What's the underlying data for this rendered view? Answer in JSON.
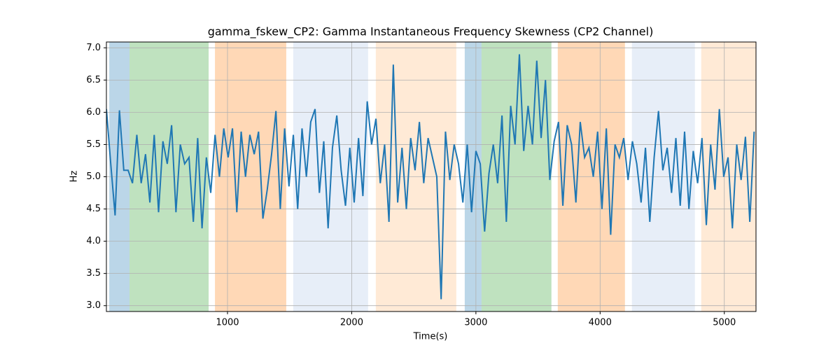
{
  "chart_data": {
    "type": "line",
    "title": "gamma_fskew_CP2: Gamma Instantaneous Frequency Skewness (CP2 Channel)",
    "x_label": "Time(s)",
    "y_label": "Hz",
    "x": [
      25,
      60,
      95,
      130,
      165,
      200,
      235,
      270,
      305,
      340,
      375,
      410,
      445,
      480,
      515,
      550,
      585,
      620,
      655,
      690,
      725,
      760,
      795,
      830,
      865,
      900,
      935,
      970,
      1005,
      1040,
      1075,
      1110,
      1145,
      1180,
      1215,
      1250,
      1285,
      1320,
      1355,
      1390,
      1425,
      1460,
      1495,
      1530,
      1565,
      1600,
      1635,
      1670,
      1705,
      1740,
      1775,
      1810,
      1845,
      1880,
      1915,
      1950,
      1985,
      2020,
      2055,
      2090,
      2125,
      2160,
      2195,
      2230,
      2265,
      2300,
      2335,
      2370,
      2405,
      2440,
      2475,
      2510,
      2545,
      2580,
      2615,
      2650,
      2685,
      2720,
      2755,
      2790,
      2825,
      2860,
      2895,
      2930,
      2965,
      3000,
      3035,
      3070,
      3105,
      3140,
      3175,
      3210,
      3245,
      3280,
      3315,
      3350,
      3385,
      3420,
      3455,
      3490,
      3525,
      3560,
      3595,
      3630,
      3665,
      3700,
      3735,
      3770,
      3805,
      3840,
      3875,
      3910,
      3945,
      3980,
      4015,
      4050,
      4085,
      4120,
      4155,
      4190,
      4225,
      4260,
      4295,
      4330,
      4365,
      4400,
      4435,
      4470,
      4505,
      4540,
      4575,
      4610,
      4645,
      4680,
      4715,
      4750,
      4785,
      4820,
      4855,
      4890,
      4925,
      4960,
      4995,
      5030,
      5065,
      5100,
      5135,
      5170,
      5205,
      5240
    ],
    "series": [
      {
        "name": "gamma_fskew_CP2",
        "color": "#1f77b4",
        "values": [
          6.05,
          5.2,
          4.4,
          6.03,
          5.1,
          5.1,
          4.9,
          5.65,
          4.9,
          5.35,
          4.6,
          5.65,
          4.45,
          5.55,
          5.2,
          5.8,
          4.45,
          5.5,
          5.2,
          5.3,
          4.3,
          5.6,
          4.2,
          5.3,
          4.75,
          5.65,
          5.0,
          5.75,
          5.3,
          5.75,
          4.45,
          5.7,
          5.0,
          5.65,
          5.35,
          5.7,
          4.35,
          4.8,
          5.35,
          6.02,
          4.5,
          5.75,
          4.85,
          5.65,
          4.5,
          5.75,
          5.0,
          5.85,
          6.05,
          4.75,
          5.55,
          4.2,
          5.45,
          5.95,
          5.1,
          4.55,
          5.45,
          4.6,
          5.6,
          4.7,
          6.17,
          5.5,
          5.9,
          4.9,
          5.5,
          4.3,
          6.74,
          4.6,
          5.45,
          4.5,
          5.6,
          5.1,
          5.85,
          4.9,
          5.6,
          5.3,
          5.0,
          3.1,
          5.7,
          4.95,
          5.5,
          5.2,
          4.6,
          5.5,
          4.45,
          5.4,
          5.2,
          4.15,
          5.05,
          5.5,
          4.9,
          5.95,
          4.3,
          6.1,
          5.5,
          6.9,
          5.4,
          6.1,
          5.5,
          6.8,
          5.6,
          6.5,
          4.95,
          5.55,
          5.85,
          4.55,
          5.8,
          5.5,
          4.6,
          5.85,
          5.3,
          5.45,
          5.0,
          5.7,
          4.5,
          5.75,
          4.1,
          5.5,
          5.3,
          5.6,
          4.95,
          5.55,
          5.2,
          4.6,
          5.45,
          4.3,
          5.3,
          6.02,
          5.1,
          5.45,
          4.75,
          5.6,
          4.55,
          5.7,
          4.5,
          5.4,
          4.9,
          5.6,
          4.25,
          5.5,
          4.8,
          6.05,
          5.0,
          5.3,
          4.2,
          5.5,
          4.95,
          5.62,
          4.3,
          5.7
        ]
      }
    ],
    "spans": [
      {
        "start": 48,
        "end": 211,
        "color": "#1f77b4",
        "opacity": 0.3
      },
      {
        "start": 211,
        "end": 848,
        "color": "#2ca02c",
        "opacity": 0.3
      },
      {
        "start": 899,
        "end": 1473,
        "color": "#ff7f0e",
        "opacity": 0.3
      },
      {
        "start": 1529,
        "end": 2132,
        "color": "#aec7e8",
        "opacity": 0.3
      },
      {
        "start": 2194,
        "end": 2842,
        "color": "#ffbb78",
        "opacity": 0.3
      },
      {
        "start": 2910,
        "end": 3045,
        "color": "#1f77b4",
        "opacity": 0.3
      },
      {
        "start": 3045,
        "end": 3608,
        "color": "#2ca02c",
        "opacity": 0.3
      },
      {
        "start": 3659,
        "end": 4200,
        "color": "#ff7f0e",
        "opacity": 0.3
      },
      {
        "start": 4256,
        "end": 4763,
        "color": "#aec7e8",
        "opacity": 0.3
      },
      {
        "start": 4814,
        "end": 5255,
        "color": "#ffbb78",
        "opacity": 0.3
      }
    ],
    "xlim": [
      25,
      5255
    ],
    "ylim": [
      2.91,
      7.09
    ],
    "xticks": [
      1000,
      2000,
      3000,
      4000,
      5000
    ],
    "yticks": [
      {
        "value": 3,
        "label": "3.0"
      },
      3.5,
      {
        "value": 4,
        "label": "4.0"
      },
      4.5,
      {
        "value": 5,
        "label": "5.0"
      },
      5.5,
      {
        "value": 6,
        "label": "6.0"
      },
      6.5,
      {
        "value": 7,
        "label": "7.0"
      }
    ],
    "grid": true
  }
}
